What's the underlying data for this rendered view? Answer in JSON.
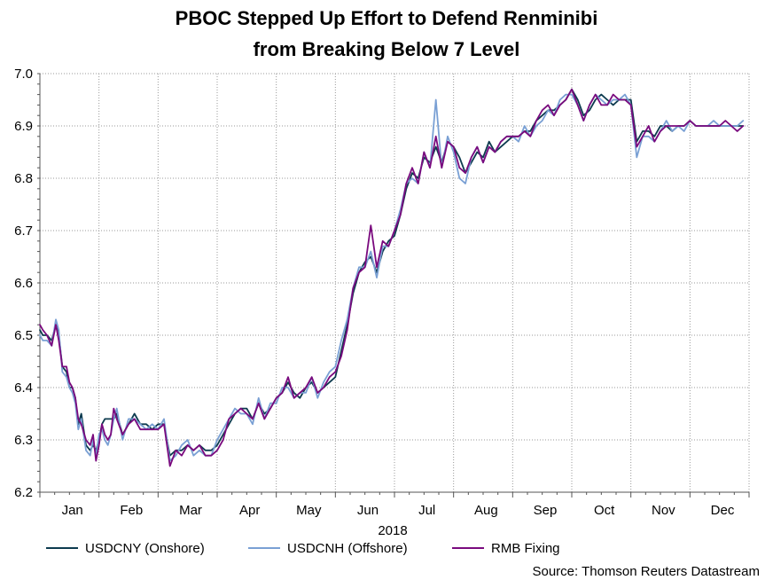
{
  "chart_data": {
    "type": "line",
    "title": "PBOC Stepped Up Effort to Defend Renminibi",
    "subtitle": "from Breaking Below 7 Level",
    "xlabel": "2018",
    "ylabel": "",
    "ylim": [
      6.2,
      7.0
    ],
    "yticks": [
      6.2,
      6.3,
      6.4,
      6.5,
      6.6,
      6.7,
      6.8,
      6.9,
      7.0
    ],
    "x_domain": [
      0,
      12
    ],
    "months": [
      "Jan",
      "Feb",
      "Mar",
      "Apr",
      "May",
      "Jun",
      "Jul",
      "Aug",
      "Sep",
      "Oct",
      "Nov",
      "Dec"
    ],
    "grid": true,
    "legend_position": "bottom",
    "source": "Source: Thomson Reuters Datastream",
    "series": [
      {
        "name": "USDCNY (Onshore)",
        "color": "#0d3b4f",
        "x": [
          0,
          0.05,
          0.12,
          0.2,
          0.27,
          0.32,
          0.38,
          0.45,
          0.5,
          0.55,
          0.6,
          0.65,
          0.7,
          0.78,
          0.85,
          0.9,
          0.95,
          1.0,
          1.05,
          1.1,
          1.15,
          1.2,
          1.25,
          1.3,
          1.4,
          1.5,
          1.6,
          1.7,
          1.8,
          1.9,
          2.0,
          2.1,
          2.2,
          2.3,
          2.4,
          2.5,
          2.6,
          2.7,
          2.8,
          2.9,
          3.0,
          3.1,
          3.2,
          3.3,
          3.4,
          3.5,
          3.6,
          3.7,
          3.8,
          3.9,
          4.0,
          4.1,
          4.2,
          4.3,
          4.4,
          4.5,
          4.6,
          4.7,
          4.8,
          4.9,
          5.0,
          5.1,
          5.2,
          5.3,
          5.4,
          5.5,
          5.6,
          5.7,
          5.8,
          5.9,
          6.0,
          6.1,
          6.2,
          6.3,
          6.4,
          6.5,
          6.6,
          6.7,
          6.8,
          6.9,
          7.0,
          7.1,
          7.2,
          7.3,
          7.4,
          7.5,
          7.6,
          7.7,
          7.8,
          7.9,
          8.0,
          8.1,
          8.2,
          8.3,
          8.4,
          8.5,
          8.6,
          8.7,
          8.8,
          8.9,
          9.0,
          9.1,
          9.2,
          9.3,
          9.4,
          9.5,
          9.6,
          9.7,
          9.8,
          9.9,
          10.0,
          10.1,
          10.2,
          10.3,
          10.4,
          10.5,
          10.6,
          10.7,
          10.8,
          10.9,
          11.0,
          11.1,
          11.2,
          11.3,
          11.4,
          11.5,
          11.6,
          11.7,
          11.8,
          11.9
        ],
        "values": [
          6.51,
          6.5,
          6.5,
          6.49,
          6.52,
          6.5,
          6.44,
          6.43,
          6.4,
          6.4,
          6.38,
          6.33,
          6.35,
          6.29,
          6.28,
          6.29,
          6.28,
          6.3,
          6.33,
          6.34,
          6.34,
          6.34,
          6.34,
          6.35,
          6.31,
          6.33,
          6.35,
          6.33,
          6.33,
          6.32,
          6.33,
          6.33,
          6.27,
          6.28,
          6.28,
          6.29,
          6.28,
          6.29,
          6.28,
          6.28,
          6.29,
          6.31,
          6.33,
          6.35,
          6.36,
          6.36,
          6.34,
          6.37,
          6.35,
          6.36,
          6.38,
          6.39,
          6.41,
          6.39,
          6.38,
          6.4,
          6.41,
          6.39,
          6.4,
          6.41,
          6.42,
          6.47,
          6.52,
          6.58,
          6.62,
          6.64,
          6.65,
          6.62,
          6.66,
          6.68,
          6.69,
          6.73,
          6.78,
          6.81,
          6.8,
          6.84,
          6.83,
          6.86,
          6.83,
          6.87,
          6.86,
          6.84,
          6.81,
          6.83,
          6.85,
          6.84,
          6.87,
          6.85,
          6.86,
          6.87,
          6.88,
          6.88,
          6.89,
          6.89,
          6.91,
          6.92,
          6.93,
          6.93,
          6.94,
          6.95,
          6.97,
          6.95,
          6.92,
          6.93,
          6.95,
          6.96,
          6.95,
          6.94,
          6.95,
          6.95,
          6.95,
          6.87,
          6.89,
          6.89,
          6.88,
          6.9,
          6.9,
          6.89,
          6.9,
          6.9,
          6.91,
          6.9,
          6.9,
          6.9,
          6.9,
          6.9,
          6.9,
          6.9,
          6.9,
          6.9
        ]
      },
      {
        "name": "USDCNH (Offshore)",
        "color": "#7aa0d4",
        "x": [
          0,
          0.05,
          0.12,
          0.2,
          0.27,
          0.32,
          0.38,
          0.45,
          0.5,
          0.55,
          0.6,
          0.65,
          0.7,
          0.78,
          0.85,
          0.9,
          0.95,
          1.0,
          1.05,
          1.1,
          1.15,
          1.2,
          1.25,
          1.3,
          1.4,
          1.5,
          1.6,
          1.7,
          1.8,
          1.9,
          2.0,
          2.1,
          2.2,
          2.3,
          2.4,
          2.5,
          2.6,
          2.7,
          2.8,
          2.9,
          3.0,
          3.1,
          3.2,
          3.3,
          3.4,
          3.5,
          3.6,
          3.7,
          3.8,
          3.9,
          4.0,
          4.1,
          4.2,
          4.3,
          4.4,
          4.5,
          4.6,
          4.7,
          4.8,
          4.9,
          5.0,
          5.1,
          5.2,
          5.3,
          5.4,
          5.5,
          5.6,
          5.7,
          5.8,
          5.9,
          6.0,
          6.1,
          6.2,
          6.3,
          6.4,
          6.5,
          6.6,
          6.7,
          6.8,
          6.9,
          7.0,
          7.1,
          7.2,
          7.3,
          7.4,
          7.5,
          7.6,
          7.7,
          7.8,
          7.9,
          8.0,
          8.1,
          8.2,
          8.3,
          8.4,
          8.5,
          8.6,
          8.7,
          8.8,
          8.9,
          9.0,
          9.1,
          9.2,
          9.3,
          9.4,
          9.5,
          9.6,
          9.7,
          9.8,
          9.9,
          10.0,
          10.1,
          10.2,
          10.3,
          10.4,
          10.5,
          10.6,
          10.7,
          10.8,
          10.9,
          11.0,
          11.1,
          11.2,
          11.3,
          11.4,
          11.5,
          11.6,
          11.7,
          11.8,
          11.9
        ],
        "values": [
          6.5,
          6.49,
          6.49,
          6.48,
          6.53,
          6.51,
          6.43,
          6.42,
          6.4,
          6.39,
          6.37,
          6.32,
          6.34,
          6.28,
          6.27,
          6.3,
          6.27,
          6.31,
          6.32,
          6.3,
          6.29,
          6.31,
          6.34,
          6.36,
          6.3,
          6.34,
          6.34,
          6.33,
          6.32,
          6.33,
          6.32,
          6.34,
          6.26,
          6.27,
          6.29,
          6.3,
          6.27,
          6.28,
          6.27,
          6.27,
          6.3,
          6.32,
          6.34,
          6.36,
          6.35,
          6.35,
          6.33,
          6.38,
          6.34,
          6.37,
          6.37,
          6.4,
          6.4,
          6.38,
          6.39,
          6.39,
          6.42,
          6.38,
          6.41,
          6.43,
          6.44,
          6.49,
          6.53,
          6.59,
          6.63,
          6.63,
          6.66,
          6.61,
          6.67,
          6.67,
          6.7,
          6.74,
          6.79,
          6.8,
          6.79,
          6.85,
          6.82,
          6.95,
          6.82,
          6.88,
          6.85,
          6.8,
          6.79,
          6.84,
          6.86,
          6.83,
          6.86,
          6.85,
          6.87,
          6.88,
          6.88,
          6.87,
          6.9,
          6.88,
          6.9,
          6.91,
          6.93,
          6.92,
          6.95,
          6.96,
          6.96,
          6.94,
          6.91,
          6.94,
          6.96,
          6.95,
          6.94,
          6.95,
          6.95,
          6.96,
          6.94,
          6.84,
          6.88,
          6.88,
          6.87,
          6.89,
          6.91,
          6.89,
          6.9,
          6.89,
          6.91,
          6.9,
          6.9,
          6.9,
          6.91,
          6.9,
          6.9,
          6.9,
          6.9,
          6.91
        ]
      },
      {
        "name": "RMB Fixing",
        "color": "#7a0a7e",
        "x": [
          0,
          0.05,
          0.12,
          0.2,
          0.27,
          0.32,
          0.38,
          0.45,
          0.5,
          0.55,
          0.6,
          0.65,
          0.7,
          0.78,
          0.85,
          0.9,
          0.95,
          1.0,
          1.05,
          1.1,
          1.15,
          1.2,
          1.25,
          1.3,
          1.4,
          1.5,
          1.6,
          1.7,
          1.8,
          1.9,
          2.0,
          2.1,
          2.2,
          2.3,
          2.4,
          2.5,
          2.6,
          2.7,
          2.8,
          2.9,
          3.0,
          3.1,
          3.2,
          3.3,
          3.4,
          3.5,
          3.6,
          3.7,
          3.8,
          3.9,
          4.0,
          4.1,
          4.2,
          4.3,
          4.4,
          4.5,
          4.6,
          4.7,
          4.8,
          4.9,
          5.0,
          5.1,
          5.2,
          5.3,
          5.4,
          5.5,
          5.6,
          5.7,
          5.8,
          5.9,
          6.0,
          6.1,
          6.2,
          6.3,
          6.4,
          6.5,
          6.6,
          6.7,
          6.8,
          6.9,
          7.0,
          7.1,
          7.2,
          7.3,
          7.4,
          7.5,
          7.6,
          7.7,
          7.8,
          7.9,
          8.0,
          8.1,
          8.2,
          8.3,
          8.4,
          8.5,
          8.6,
          8.7,
          8.8,
          8.9,
          9.0,
          9.1,
          9.2,
          9.3,
          9.4,
          9.5,
          9.6,
          9.7,
          9.8,
          9.9,
          10.0,
          10.1,
          10.2,
          10.3,
          10.4,
          10.5,
          10.6,
          10.7,
          10.8,
          10.9,
          11.0,
          11.1,
          11.2,
          11.3,
          11.4,
          11.5,
          11.6,
          11.7,
          11.8,
          11.9
        ],
        "values": [
          6.52,
          6.51,
          6.5,
          6.48,
          6.52,
          6.49,
          6.44,
          6.44,
          6.41,
          6.4,
          6.38,
          6.34,
          6.33,
          6.3,
          6.29,
          6.31,
          6.26,
          6.29,
          6.33,
          6.31,
          6.3,
          6.31,
          6.36,
          6.34,
          6.31,
          6.33,
          6.34,
          6.32,
          6.32,
          6.32,
          6.32,
          6.33,
          6.25,
          6.28,
          6.27,
          6.29,
          6.28,
          6.29,
          6.27,
          6.27,
          6.28,
          6.3,
          6.34,
          6.35,
          6.36,
          6.35,
          6.34,
          6.37,
          6.34,
          6.36,
          6.38,
          6.39,
          6.42,
          6.38,
          6.39,
          6.4,
          6.42,
          6.39,
          6.4,
          6.42,
          6.43,
          6.46,
          6.51,
          6.59,
          6.62,
          6.63,
          6.71,
          6.63,
          6.68,
          6.67,
          6.7,
          6.73,
          6.79,
          6.82,
          6.79,
          6.85,
          6.82,
          6.88,
          6.82,
          6.87,
          6.86,
          6.82,
          6.81,
          6.84,
          6.86,
          6.83,
          6.86,
          6.85,
          6.87,
          6.88,
          6.88,
          6.88,
          6.89,
          6.88,
          6.91,
          6.93,
          6.94,
          6.92,
          6.94,
          6.95,
          6.97,
          6.94,
          6.91,
          6.94,
          6.96,
          6.94,
          6.94,
          6.96,
          6.95,
          6.95,
          6.94,
          6.86,
          6.88,
          6.9,
          6.87,
          6.89,
          6.9,
          6.9,
          6.9,
          6.9,
          6.91,
          6.9,
          6.9,
          6.9,
          6.9,
          6.9,
          6.91,
          6.9,
          6.89,
          6.9
        ]
      }
    ]
  }
}
